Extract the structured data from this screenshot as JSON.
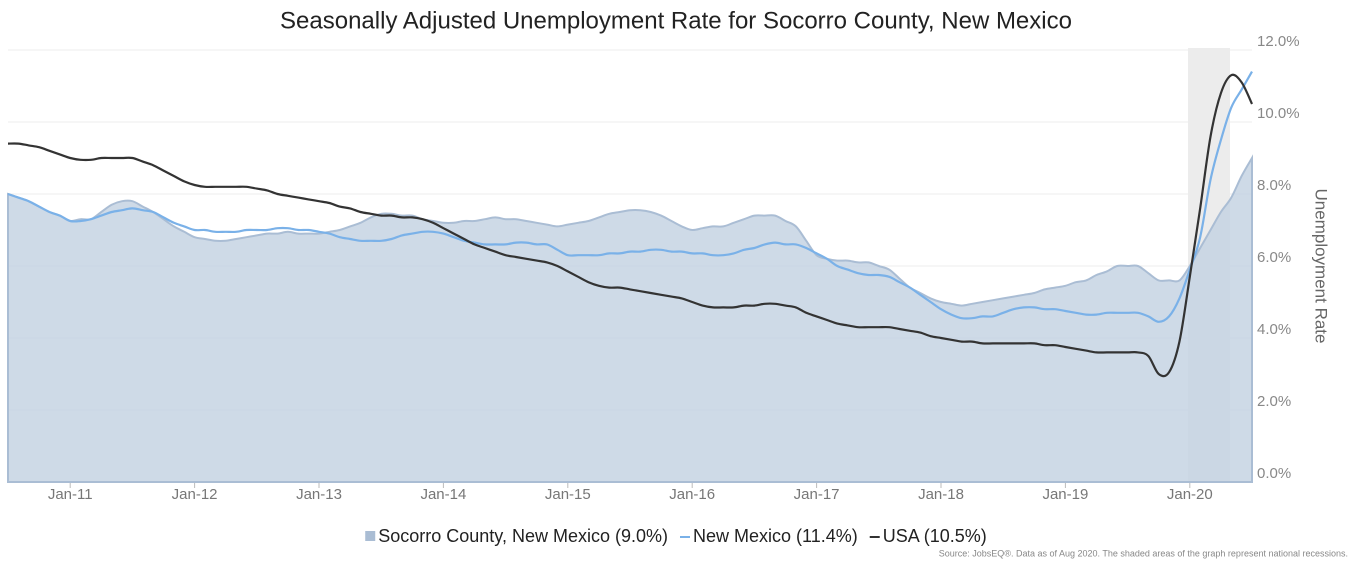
{
  "chart_data": {
    "type": "line",
    "title": "Seasonally Adjusted Unemployment Rate for Socorro County, New Mexico",
    "y_axis_label": "Unemployment Rate",
    "source": "Source: JobsEQ®. Data as of Aug 2020. The shaded areas of the graph represent national recessions.",
    "categories": [
      null,
      null,
      null,
      null,
      null,
      null,
      "Jan-11",
      null,
      null,
      null,
      null,
      null,
      null,
      null,
      null,
      null,
      null,
      null,
      "Jan-12",
      null,
      null,
      null,
      null,
      null,
      null,
      null,
      null,
      null,
      null,
      null,
      "Jan-13",
      null,
      null,
      null,
      null,
      null,
      null,
      null,
      null,
      null,
      null,
      null,
      "Jan-14",
      null,
      null,
      null,
      null,
      null,
      null,
      null,
      null,
      null,
      null,
      null,
      "Jan-15",
      null,
      null,
      null,
      null,
      null,
      null,
      null,
      null,
      null,
      null,
      null,
      "Jan-16",
      null,
      null,
      null,
      null,
      null,
      null,
      null,
      null,
      null,
      null,
      null,
      "Jan-17",
      null,
      null,
      null,
      null,
      null,
      null,
      null,
      null,
      null,
      null,
      null,
      "Jan-18",
      null,
      null,
      null,
      null,
      null,
      null,
      null,
      null,
      null,
      null,
      null,
      "Jan-19",
      null,
      null,
      null,
      null,
      null,
      null,
      null,
      null,
      null,
      null,
      null,
      "Jan-20",
      null,
      null,
      null,
      null,
      null,
      null
    ],
    "series": [
      {
        "name": "Socorro County, New Mexico (9.0%)",
        "color": "#c5d3e3",
        "area": true,
        "values": [
          8.0,
          7.9,
          7.8,
          7.65,
          7.5,
          7.4,
          7.25,
          7.3,
          7.3,
          7.5,
          7.7,
          7.8,
          7.8,
          7.65,
          7.5,
          7.3,
          7.1,
          6.95,
          6.8,
          6.75,
          6.7,
          6.7,
          6.75,
          6.8,
          6.85,
          6.9,
          6.9,
          6.95,
          6.9,
          6.9,
          6.9,
          6.95,
          7.0,
          7.1,
          7.2,
          7.35,
          7.45,
          7.45,
          7.4,
          7.4,
          7.3,
          7.25,
          7.2,
          7.2,
          7.25,
          7.25,
          7.3,
          7.35,
          7.3,
          7.3,
          7.25,
          7.2,
          7.15,
          7.1,
          7.15,
          7.2,
          7.25,
          7.35,
          7.45,
          7.5,
          7.55,
          7.55,
          7.5,
          7.4,
          7.25,
          7.1,
          7.0,
          7.05,
          7.1,
          7.1,
          7.2,
          7.3,
          7.4,
          7.4,
          7.4,
          7.25,
          7.1,
          6.7,
          6.3,
          6.2,
          6.15,
          6.15,
          6.1,
          6.1,
          6.0,
          5.9,
          5.65,
          5.4,
          5.25,
          5.1,
          5.0,
          4.95,
          4.9,
          4.95,
          5.0,
          5.05,
          5.1,
          5.15,
          5.2,
          5.25,
          5.35,
          5.4,
          5.45,
          5.55,
          5.6,
          5.75,
          5.85,
          6.0,
          6.0,
          6.0,
          5.8,
          5.6,
          5.6,
          5.6,
          6.0,
          6.5,
          7.0,
          7.5,
          7.9,
          8.5,
          9.0
        ]
      },
      {
        "name": "New Mexico (11.4%)",
        "color": "#7ab1e8",
        "values": [
          8.0,
          7.9,
          7.8,
          7.65,
          7.5,
          7.4,
          7.25,
          7.25,
          7.3,
          7.4,
          7.5,
          7.55,
          7.6,
          7.55,
          7.5,
          7.35,
          7.2,
          7.1,
          7.0,
          7.0,
          6.95,
          6.95,
          6.95,
          7.0,
          7.0,
          7.0,
          7.05,
          7.05,
          7.0,
          7.0,
          6.95,
          6.9,
          6.8,
          6.75,
          6.7,
          6.7,
          6.7,
          6.75,
          6.85,
          6.9,
          6.95,
          6.95,
          6.9,
          6.8,
          6.7,
          6.65,
          6.6,
          6.6,
          6.6,
          6.65,
          6.65,
          6.6,
          6.6,
          6.45,
          6.3,
          6.3,
          6.3,
          6.3,
          6.35,
          6.35,
          6.4,
          6.4,
          6.45,
          6.45,
          6.4,
          6.4,
          6.35,
          6.35,
          6.3,
          6.3,
          6.35,
          6.45,
          6.5,
          6.6,
          6.65,
          6.6,
          6.6,
          6.5,
          6.35,
          6.2,
          6.0,
          5.9,
          5.8,
          5.75,
          5.75,
          5.7,
          5.55,
          5.4,
          5.2,
          5.0,
          4.8,
          4.65,
          4.55,
          4.55,
          4.6,
          4.6,
          4.7,
          4.8,
          4.85,
          4.85,
          4.8,
          4.8,
          4.75,
          4.7,
          4.65,
          4.65,
          4.7,
          4.7,
          4.7,
          4.7,
          4.6,
          4.45,
          4.6,
          5.1,
          5.9,
          6.8,
          8.4,
          9.5,
          10.4,
          10.9,
          11.4
        ]
      },
      {
        "name": "USA (10.5%)",
        "color": "#333333",
        "values": [
          9.4,
          9.4,
          9.35,
          9.3,
          9.2,
          9.1,
          9.0,
          8.95,
          8.95,
          9.0,
          9.0,
          9.0,
          9.0,
          8.9,
          8.8,
          8.65,
          8.5,
          8.35,
          8.25,
          8.2,
          8.2,
          8.2,
          8.2,
          8.2,
          8.15,
          8.1,
          8.0,
          7.95,
          7.9,
          7.85,
          7.8,
          7.75,
          7.65,
          7.6,
          7.5,
          7.45,
          7.4,
          7.4,
          7.35,
          7.35,
          7.3,
          7.2,
          7.05,
          6.9,
          6.75,
          6.6,
          6.5,
          6.4,
          6.3,
          6.25,
          6.2,
          6.15,
          6.1,
          6.0,
          5.85,
          5.7,
          5.55,
          5.45,
          5.4,
          5.4,
          5.35,
          5.3,
          5.25,
          5.2,
          5.15,
          5.1,
          5.0,
          4.9,
          4.85,
          4.85,
          4.85,
          4.9,
          4.9,
          4.95,
          4.95,
          4.9,
          4.85,
          4.7,
          4.6,
          4.5,
          4.4,
          4.35,
          4.3,
          4.3,
          4.3,
          4.3,
          4.25,
          4.2,
          4.15,
          4.05,
          4.0,
          3.95,
          3.9,
          3.9,
          3.85,
          3.85,
          3.85,
          3.85,
          3.85,
          3.85,
          3.8,
          3.8,
          3.75,
          3.7,
          3.65,
          3.6,
          3.6,
          3.6,
          3.6,
          3.6,
          3.5,
          3.0,
          3.05,
          3.9,
          5.7,
          7.6,
          9.6,
          10.8,
          11.3,
          11.1,
          10.5
        ]
      }
    ],
    "ylim": [
      0,
      12
    ],
    "yticks": [
      {
        "value": 0,
        "label": "0.0%"
      },
      {
        "value": 2,
        "label": "2.0%"
      },
      {
        "value": 4,
        "label": "4.0%"
      },
      {
        "value": 6,
        "label": "6.0%"
      },
      {
        "value": 8,
        "label": "8.0%"
      },
      {
        "value": 10,
        "label": "10.0%"
      },
      {
        "value": 12,
        "label": "12.0%"
      }
    ],
    "grid": true,
    "legend": "bottom"
  }
}
